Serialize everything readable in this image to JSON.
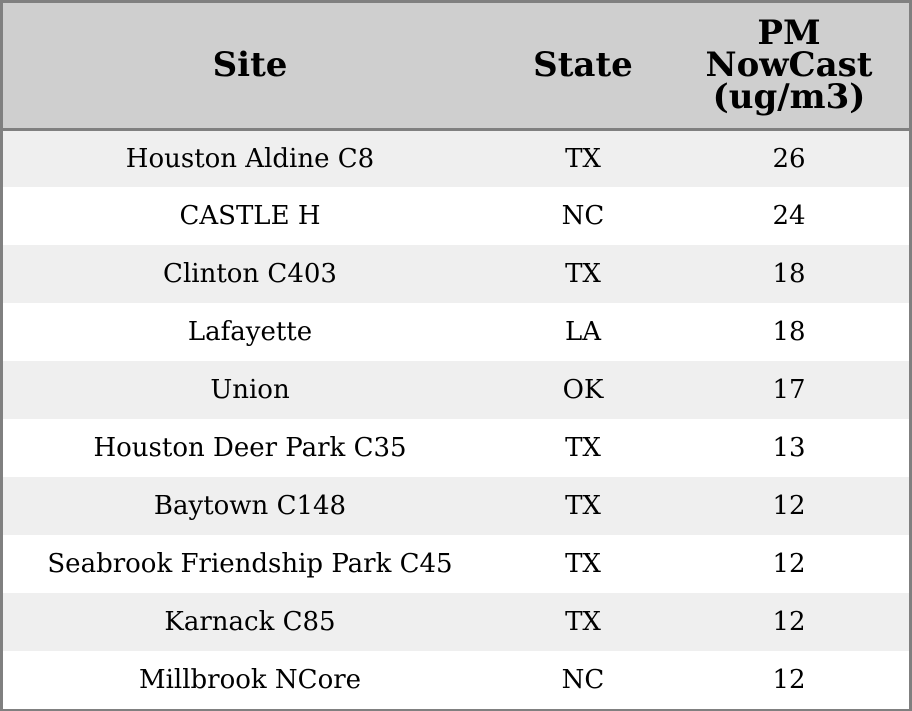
{
  "table": {
    "headers": {
      "site": "Site",
      "state": "State",
      "pm_line1": "PM",
      "pm_line2": "NowCast",
      "pm_line3": "(ug/m3)"
    },
    "rows": [
      {
        "site": "Houston Aldine C8",
        "state": "TX",
        "pm": "26"
      },
      {
        "site": "CASTLE H",
        "state": "NC",
        "pm": "24"
      },
      {
        "site": "Clinton C403",
        "state": "TX",
        "pm": "18"
      },
      {
        "site": "Lafayette",
        "state": "LA",
        "pm": "18"
      },
      {
        "site": "Union",
        "state": "OK",
        "pm": "17"
      },
      {
        "site": "Houston Deer Park C35",
        "state": "TX",
        "pm": "13"
      },
      {
        "site": "Baytown C148",
        "state": "TX",
        "pm": "12"
      },
      {
        "site": "Seabrook Friendship Park C45",
        "state": "TX",
        "pm": "12"
      },
      {
        "site": "Karnack C85",
        "state": "TX",
        "pm": "12"
      },
      {
        "site": "Millbrook NCore",
        "state": "NC",
        "pm": "12"
      }
    ]
  },
  "colors": {
    "header_bg": "#cfcfcf",
    "row_alt_bg": "#efefef",
    "row_bg": "#ffffff",
    "border": "#808080"
  }
}
